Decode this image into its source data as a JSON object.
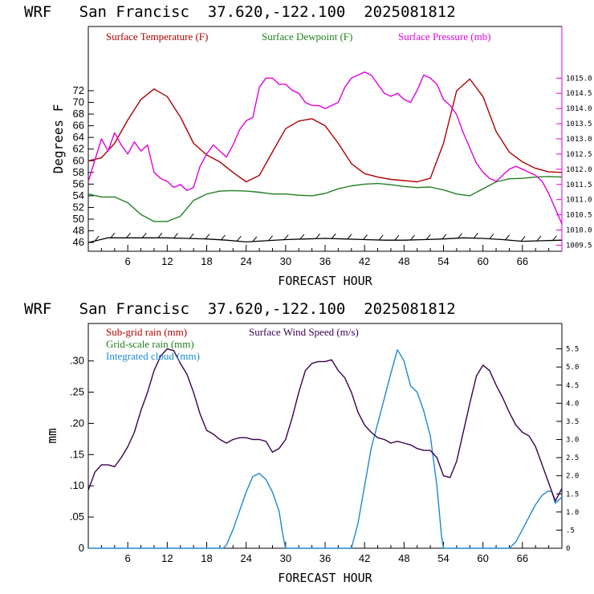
{
  "top": {
    "title": "WRF   San Francisc  37.620,-122.100  2025081812",
    "ylabel": "Degrees F",
    "xlabel": "FORECAST HOUR",
    "legend": [
      {
        "label": "Surface Temperature (F)",
        "color": "#b00000"
      },
      {
        "label": "Surface Dewpoint (F)",
        "color": "#208020"
      },
      {
        "label": "Surface Pressure (mb)",
        "color": "#e000e0"
      }
    ]
  },
  "bottom": {
    "title": "WRF   San Francisc  37.620,-122.100  2025081812",
    "ylabel": "mm",
    "xlabel": "FORECAST HOUR",
    "legend": [
      {
        "label": "Sub-grid rain (mm)",
        "color": "#b00000"
      },
      {
        "label": "Grid-scale rain (mm)",
        "color": "#208020"
      },
      {
        "label": "Integrated cloud (mm)",
        "color": "#1a8ad0"
      },
      {
        "label": "Surface Wind Speed (m/s)",
        "color": "#3a0050"
      }
    ]
  },
  "chart_data": [
    {
      "type": "line",
      "title": "WRF   San Francisc  37.620,-122.100  2025081812",
      "xlabel": "FORECAST HOUR",
      "ylabel": "Degrees F",
      "xlim": [
        0,
        72
      ],
      "ylim": [
        44.5,
        83
      ],
      "xticks": [
        "6",
        "12",
        "18",
        "24",
        "30",
        "36",
        "42",
        "48",
        "54",
        "60",
        "66"
      ],
      "yticks": [
        "46",
        "48",
        "50",
        "52",
        "54",
        "56",
        "58",
        "60",
        "62",
        "64",
        "66",
        "68",
        "70",
        "72"
      ],
      "y2lim": [
        1009.3,
        1016.7
      ],
      "y2ticks": [
        "1009.5",
        "1010.0",
        "1010.5",
        "1011.0",
        "1011.5",
        "1012.0",
        "1012.5",
        "1013.0",
        "1013.5",
        "1014.0",
        "1014.5",
        "1015.0"
      ],
      "series": [
        {
          "name": "Surface Temperature (F)",
          "color": "#b00000",
          "axis": "left",
          "x": [
            0,
            2,
            4,
            6,
            8,
            10,
            12,
            14,
            16,
            18,
            20,
            22,
            24,
            26,
            28,
            30,
            32,
            34,
            36,
            38,
            40,
            42,
            44,
            46,
            48,
            50,
            52,
            54,
            56,
            58,
            60,
            62,
            64,
            66,
            68,
            70,
            72
          ],
          "y": [
            60,
            60.5,
            63,
            67,
            70.5,
            72.3,
            71,
            67.5,
            63,
            61,
            59.8,
            58,
            56.4,
            57.5,
            61.5,
            65.5,
            66.8,
            67.2,
            66,
            63,
            59.5,
            57.8,
            57.2,
            56.8,
            56.6,
            56.4,
            57,
            63,
            72,
            74,
            71,
            65,
            61.5,
            59.8,
            58.7,
            58.1,
            58
          ]
        },
        {
          "name": "Surface Dewpoint (F)",
          "color": "#208020",
          "axis": "left",
          "x": [
            0,
            2,
            4,
            6,
            8,
            10,
            12,
            14,
            16,
            18,
            20,
            22,
            24,
            26,
            28,
            30,
            32,
            34,
            36,
            38,
            40,
            42,
            44,
            46,
            48,
            50,
            52,
            54,
            56,
            58,
            60,
            62,
            64,
            66,
            68,
            70,
            72
          ],
          "y": [
            54.3,
            53.8,
            53.8,
            52.8,
            50.8,
            49.6,
            49.6,
            50.5,
            53.2,
            54.3,
            54.8,
            54.9,
            54.8,
            54.6,
            54.3,
            54.3,
            54.1,
            54,
            54.4,
            55.2,
            55.7,
            56,
            56.1,
            55.9,
            55.6,
            55.4,
            55.5,
            55,
            54.3,
            54,
            55.2,
            56.4,
            56.9,
            57,
            57.2,
            57.3,
            57.2
          ]
        },
        {
          "name": "Surface Pressure (mb)",
          "color": "#e000e0",
          "axis": "right",
          "x": [
            0,
            1,
            2,
            3,
            4,
            5,
            6,
            7,
            8,
            9,
            10,
            11,
            12,
            13,
            14,
            15,
            16,
            17,
            18,
            19,
            20,
            21,
            22,
            23,
            24,
            25,
            26,
            27,
            28,
            29,
            30,
            31,
            32,
            33,
            34,
            35,
            36,
            37,
            38,
            39,
            40,
            41,
            42,
            43,
            44,
            45,
            46,
            47,
            48,
            49,
            50,
            51,
            52,
            53,
            54,
            55,
            56,
            57,
            58,
            59,
            60,
            61,
            62,
            63,
            64,
            65,
            66,
            67,
            68,
            69,
            70,
            71,
            72
          ],
          "y": [
            1011.6,
            1012.3,
            1013,
            1012.6,
            1013.2,
            1012.8,
            1012.5,
            1012.9,
            1012.6,
            1012.8,
            1011.9,
            1011.7,
            1011.6,
            1011.4,
            1011.5,
            1011.3,
            1011.4,
            1012.1,
            1012.5,
            1012.8,
            1012.6,
            1012.4,
            1012.8,
            1013.3,
            1013.6,
            1013.7,
            1014.7,
            1015.0,
            1015.0,
            1014.8,
            1014.8,
            1014.6,
            1014.5,
            1014.2,
            1014.1,
            1014.1,
            1014.0,
            1014.1,
            1014.2,
            1014.7,
            1015.0,
            1015.1,
            1015.2,
            1015.1,
            1014.8,
            1014.5,
            1014.4,
            1014.5,
            1014.3,
            1014.2,
            1014.6,
            1015.1,
            1015.0,
            1014.8,
            1014.3,
            1014.1,
            1013.8,
            1013.2,
            1012.7,
            1012.2,
            1011.9,
            1011.7,
            1011.6,
            1011.8,
            1012.0,
            1012.1,
            1012.0,
            1011.9,
            1011.8,
            1011.6,
            1011.2,
            1010.7,
            1010.2
          ]
        },
        {
          "name": "Wind barbs",
          "color": "#000000",
          "axis": "left",
          "x": [
            0,
            3,
            6,
            9,
            12,
            15,
            18,
            21,
            24,
            27,
            30,
            33,
            36,
            39,
            42,
            45,
            48,
            51,
            54,
            57,
            60,
            63,
            66,
            69,
            72
          ],
          "y": [
            46,
            46.8,
            46.8,
            46.8,
            46.8,
            46.7,
            46.6,
            46.4,
            46.1,
            46.3,
            46.5,
            46.6,
            46.7,
            46.6,
            46.5,
            46.4,
            46.4,
            46.5,
            46.6,
            46.8,
            46.7,
            46.5,
            46.2,
            46.3,
            46.4
          ]
        }
      ]
    },
    {
      "type": "line",
      "title": "WRF   San Francisc  37.620,-122.100  2025081812",
      "xlabel": "FORECAST HOUR",
      "ylabel": "mm",
      "xlim": [
        0,
        72
      ],
      "ylim": [
        0,
        0.36
      ],
      "xticks": [
        "6",
        "12",
        "18",
        "24",
        "30",
        "36",
        "42",
        "48",
        "54",
        "60",
        "66"
      ],
      "yticks": [
        "0",
        ".05",
        ".10",
        ".15",
        ".20",
        ".25",
        ".30"
      ],
      "y2lim": [
        0,
        6.2
      ],
      "y2ticks": [
        "0",
        ".5",
        "1.0",
        "1.5",
        "2.0",
        "2.5",
        "3.0",
        "3.5",
        "4.0",
        "4.5",
        "5.0",
        "5.5"
      ],
      "series": [
        {
          "name": "Integrated cloud (mm)",
          "color": "#1a8ad0",
          "axis": "left",
          "x": [
            0,
            20.5,
            21,
            22,
            23,
            24,
            25,
            26,
            27,
            28,
            29,
            29.6,
            30,
            39,
            40,
            41,
            42,
            43,
            44,
            45,
            46,
            47,
            48,
            49,
            50,
            51,
            52,
            53,
            53.7,
            54,
            64,
            65,
            66,
            67,
            68,
            69,
            70,
            70.5,
            71,
            72
          ],
          "y": [
            0,
            0,
            0.005,
            0.03,
            0.06,
            0.09,
            0.115,
            0.12,
            0.11,
            0.09,
            0.06,
            0.02,
            0,
            0,
            0,
            0.04,
            0.1,
            0.16,
            0.2,
            0.24,
            0.28,
            0.318,
            0.3,
            0.26,
            0.25,
            0.22,
            0.18,
            0.1,
            0.02,
            0,
            0,
            0.01,
            0.03,
            0.05,
            0.07,
            0.085,
            0.092,
            0.09,
            0.072,
            0.082
          ]
        },
        {
          "name": "Surface Wind Speed (m/s)",
          "color": "#3a0050",
          "axis": "right",
          "x": [
            0,
            1,
            2,
            3,
            4,
            5,
            6,
            7,
            8,
            9,
            10,
            11,
            12,
            13,
            14,
            15,
            16,
            17,
            18,
            19,
            20,
            21,
            22,
            23,
            24,
            25,
            26,
            27,
            28,
            29,
            30,
            31,
            32,
            33,
            34,
            35,
            36,
            37,
            38,
            39,
            40,
            41,
            42,
            43,
            44,
            45,
            46,
            47,
            48,
            49,
            50,
            51,
            52,
            53,
            54,
            55,
            56,
            57,
            58,
            59,
            60,
            61,
            62,
            63,
            64,
            65,
            66,
            67,
            68,
            69,
            70,
            71,
            72
          ],
          "y": [
            1.6,
            2.1,
            2.3,
            2.3,
            2.25,
            2.5,
            2.8,
            3.2,
            3.8,
            4.3,
            4.9,
            5.3,
            5.5,
            5.45,
            5.1,
            4.8,
            4.3,
            3.7,
            3.25,
            3.15,
            3.0,
            2.9,
            3.0,
            3.05,
            3.05,
            3.0,
            3.0,
            2.95,
            2.65,
            2.75,
            3.0,
            3.6,
            4.3,
            4.9,
            5.1,
            5.15,
            5.15,
            5.2,
            4.9,
            4.7,
            4.3,
            3.75,
            3.4,
            3.2,
            3.05,
            3.0,
            2.9,
            2.95,
            2.9,
            2.85,
            2.75,
            2.7,
            2.7,
            2.5,
            2.0,
            1.95,
            2.4,
            3.2,
            4.0,
            4.75,
            5.05,
            4.9,
            4.5,
            4.15,
            3.75,
            3.4,
            3.2,
            3.1,
            2.8,
            2.3,
            1.8,
            1.3,
            1.65
          ]
        }
      ]
    }
  ]
}
